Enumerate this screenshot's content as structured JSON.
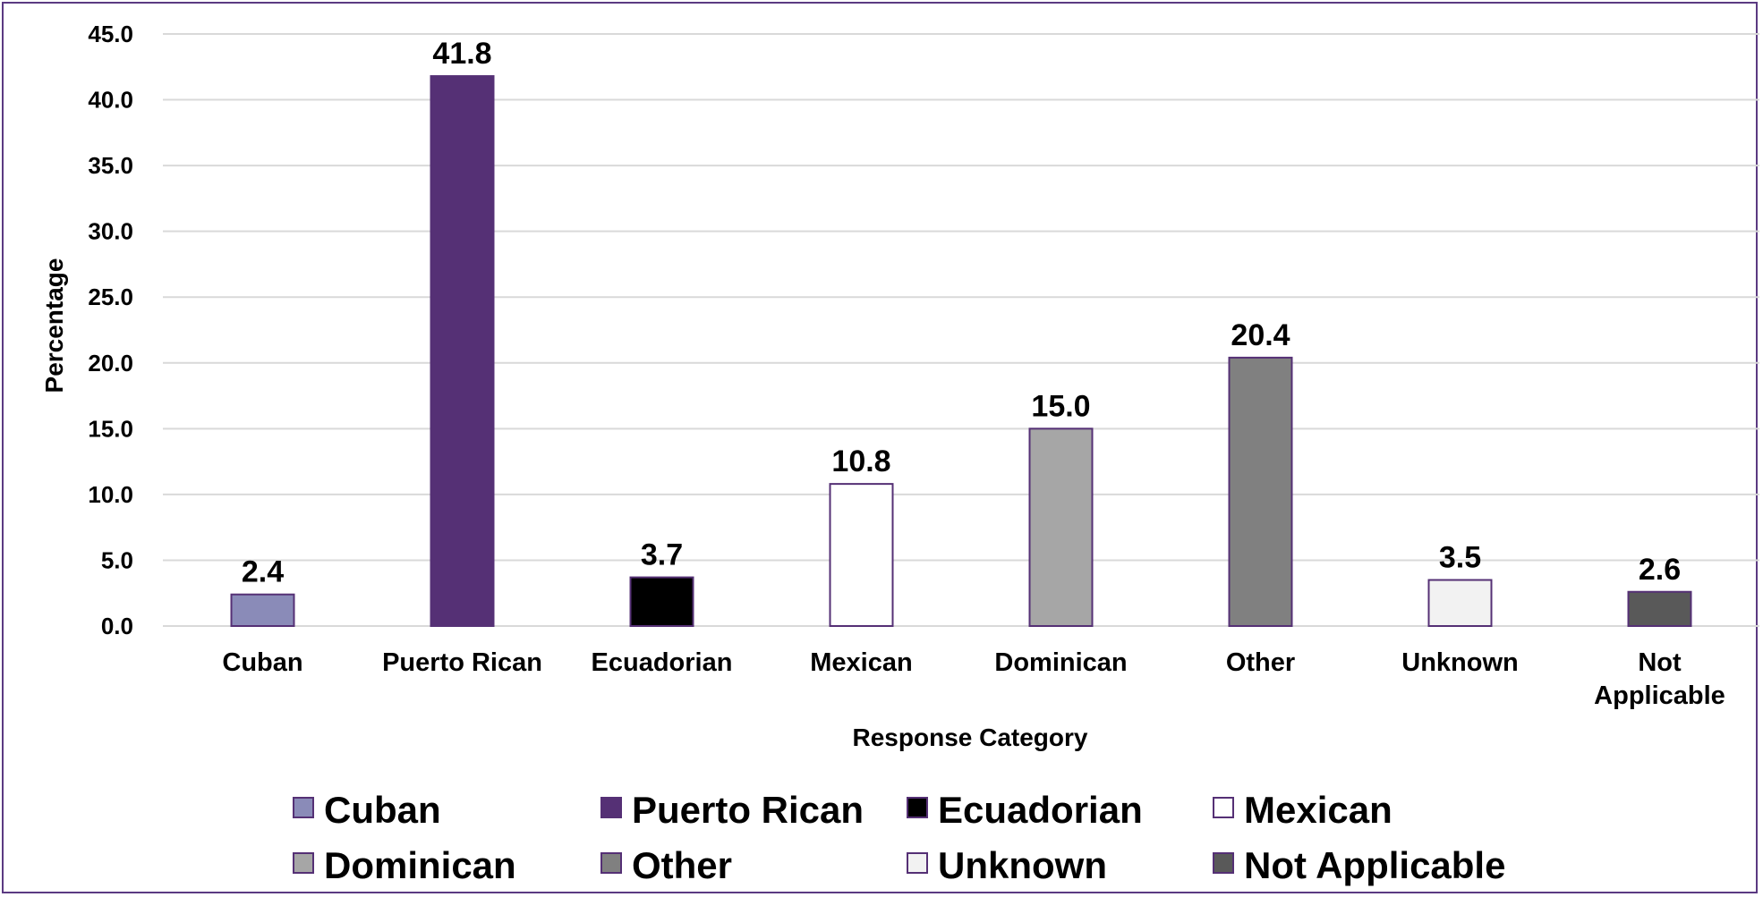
{
  "chart_data": {
    "type": "bar",
    "categories": [
      "Cuban",
      "Puerto Rican",
      "Ecuadorian",
      "Mexican",
      "Dominican",
      "Other",
      "Unknown",
      "Not Applicable"
    ],
    "category_tick_labels": [
      [
        "Cuban"
      ],
      [
        "Puerto Rican"
      ],
      [
        "Ecuadorian"
      ],
      [
        "Mexican"
      ],
      [
        "Dominican"
      ],
      [
        "Other"
      ],
      [
        "Unknown"
      ],
      [
        "Not",
        "Applicable"
      ]
    ],
    "values": [
      2.4,
      41.8,
      3.7,
      10.8,
      15.0,
      20.4,
      3.5,
      2.6
    ],
    "value_labels": [
      "2.4",
      "41.8",
      "3.7",
      "10.8",
      "15.0",
      "20.4",
      "3.5",
      "2.6"
    ],
    "colors": [
      "#8a8bb8",
      "#553075",
      "#000000",
      "#ffffff",
      "#a6a6a6",
      "#808080",
      "#f2f2f2",
      "#595959"
    ],
    "bar_outline_color": "#553075",
    "title": "",
    "xlabel": "Response Category",
    "ylabel": "Percentage",
    "ylim": [
      0,
      45
    ],
    "y_ticks": [
      "0.0",
      "5.0",
      "10.0",
      "15.0",
      "20.0",
      "25.0",
      "30.0",
      "35.0",
      "40.0",
      "45.0"
    ],
    "grid": true,
    "grid_color": "#d9d9d9",
    "frame_color": "#5b3a82",
    "legend": {
      "placement": "bottom",
      "entries": [
        "Cuban",
        "Puerto Rican",
        "Ecuadorian",
        "Mexican",
        "Dominican",
        "Other",
        "Unknown",
        "Not Applicable"
      ]
    }
  }
}
